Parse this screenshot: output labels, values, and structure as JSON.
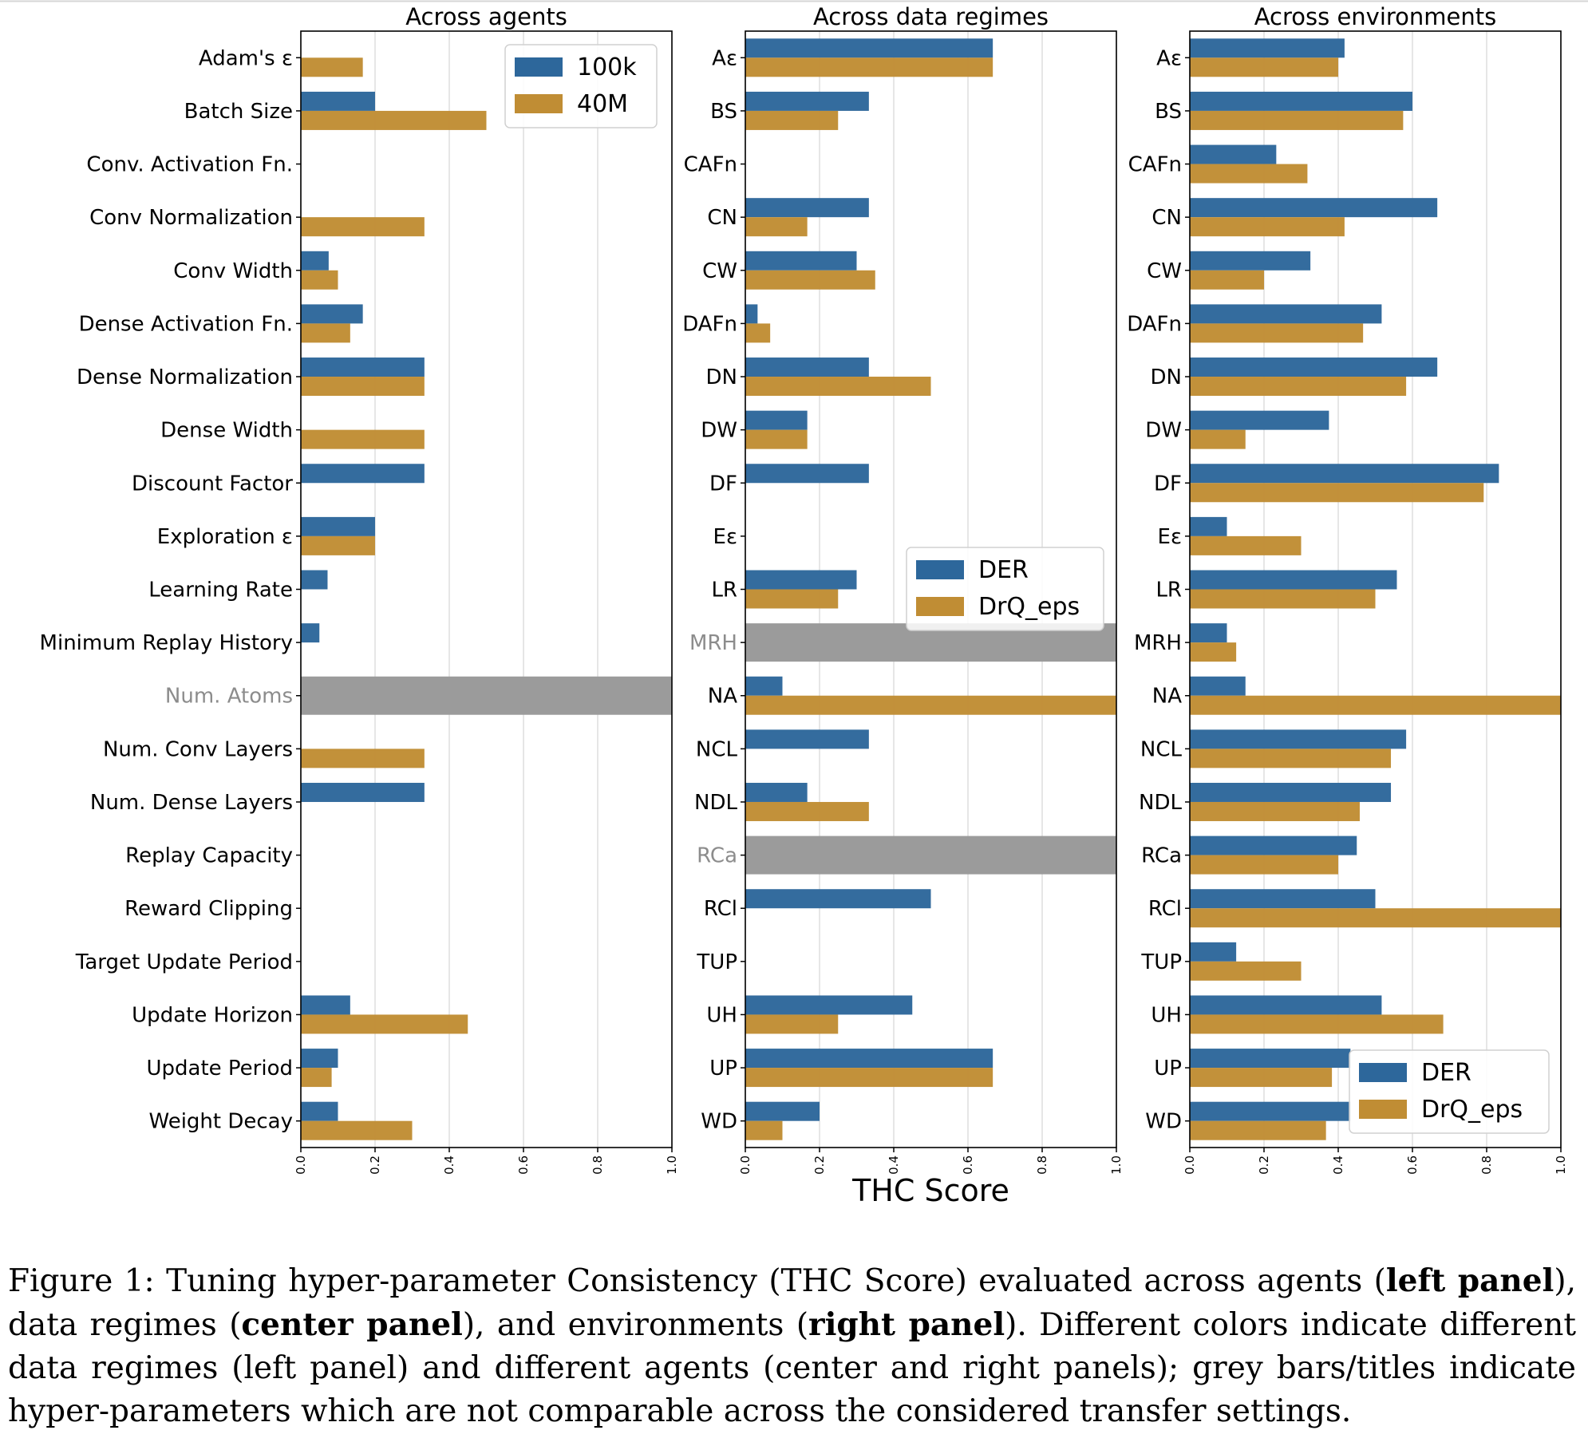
{
  "colors": {
    "series_a": "#2d679b",
    "series_b": "#c08d34",
    "grey_bar": "#9b9b9b",
    "grey_label": "#8c8c8c",
    "grid": "#dedede"
  },
  "chart_data": [
    {
      "type": "bar",
      "orientation": "horizontal",
      "title": "Across agents",
      "categories": [
        "Adam's ε",
        "Batch Size",
        "Conv. Activation Fn.",
        "Conv Normalization",
        "Conv Width",
        "Dense Activation Fn.",
        "Dense Normalization",
        "Dense Width",
        "Discount Factor",
        "Exploration ε",
        "Learning Rate",
        "Minimum Replay History",
        "Num. Atoms",
        "Num. Conv Layers",
        "Num. Dense Layers",
        "Replay Capacity",
        "Reward Clipping",
        "Target Update Period",
        "Update Horizon",
        "Update Period",
        "Weight Decay"
      ],
      "grey_categories": [
        "Num. Atoms"
      ],
      "series": [
        {
          "name": "100k",
          "values": [
            0,
            0.2,
            0,
            0,
            0.075,
            0.167,
            0.333,
            0,
            0.333,
            0.2,
            0.072,
            0.05,
            0,
            0,
            0.333,
            0,
            0,
            0,
            0.133,
            0.1,
            0.1
          ]
        },
        {
          "name": "40M",
          "values": [
            0.167,
            0.5,
            0,
            0.333,
            0.1,
            0.133,
            0.333,
            0.333,
            0,
            0.2,
            0,
            0,
            0,
            0.333,
            0,
            0,
            0,
            0,
            0.45,
            0.083,
            0.3
          ]
        }
      ],
      "xlim": [
        0,
        1
      ],
      "xticks": [
        "0.0",
        "0.2",
        "0.4",
        "0.6",
        "0.8",
        "1.0"
      ],
      "legend": "top-right",
      "grid": true
    },
    {
      "type": "bar",
      "orientation": "horizontal",
      "title": "Across data regimes",
      "categories": [
        "Aε",
        "BS",
        "CAFn",
        "CN",
        "CW",
        "DAFn",
        "DN",
        "DW",
        "DF",
        "Eε",
        "LR",
        "MRH",
        "NA",
        "NCL",
        "NDL",
        "RCa",
        "RCl",
        "TUP",
        "UH",
        "UP",
        "WD"
      ],
      "grey_categories": [
        "MRH",
        "RCa"
      ],
      "series": [
        {
          "name": "DER",
          "values": [
            0.667,
            0.333,
            0,
            0.333,
            0.3,
            0.033,
            0.333,
            0.167,
            0.333,
            0,
            0.3,
            0,
            0.1,
            0.333,
            0.167,
            0,
            0.5,
            0,
            0.45,
            0.667,
            0.2
          ]
        },
        {
          "name": "DrQ_eps",
          "values": [
            0.667,
            0.25,
            0,
            0.167,
            0.35,
            0.067,
            0.5,
            0.167,
            0,
            0,
            0.25,
            0,
            1.0,
            0,
            0.333,
            0,
            0,
            0,
            0.25,
            0.667,
            0.1
          ]
        }
      ],
      "xlim": [
        0,
        1
      ],
      "xticks": [
        "0.0",
        "0.2",
        "0.4",
        "0.6",
        "0.8",
        "1.0"
      ],
      "xlabel": "THC Score",
      "legend": "center-right",
      "grid": true
    },
    {
      "type": "bar",
      "orientation": "horizontal",
      "title": "Across environments",
      "categories": [
        "Aε",
        "BS",
        "CAFn",
        "CN",
        "CW",
        "DAFn",
        "DN",
        "DW",
        "DF",
        "Eε",
        "LR",
        "MRH",
        "NA",
        "NCL",
        "NDL",
        "RCa",
        "RCl",
        "TUP",
        "UH",
        "UP",
        "WD"
      ],
      "grey_categories": [],
      "series": [
        {
          "name": "DER",
          "values": [
            0.417,
            0.6,
            0.233,
            0.667,
            0.325,
            0.517,
            0.667,
            0.375,
            0.833,
            0.1,
            0.558,
            0.1,
            0.15,
            0.583,
            0.542,
            0.45,
            0.5,
            0.125,
            0.517,
            0.433,
            0.433
          ]
        },
        {
          "name": "DrQ_eps",
          "values": [
            0.4,
            0.575,
            0.317,
            0.417,
            0.2,
            0.467,
            0.583,
            0.15,
            0.792,
            0.3,
            0.5,
            0.125,
            1.0,
            0.542,
            0.458,
            0.4,
            1.0,
            0.3,
            0.683,
            0.383,
            0.367
          ]
        }
      ],
      "xlim": [
        0,
        1
      ],
      "xticks": [
        "0.0",
        "0.2",
        "0.4",
        "0.6",
        "0.8",
        "1.0"
      ],
      "legend": "bottom-right",
      "grid": true
    }
  ],
  "caption": {
    "p1": "Figure 1: Tuning hyper-parameter Consistency (THC Score) evaluated across agents (",
    "b1": "left panel",
    "p2": "), data regimes (",
    "b2": "center panel",
    "p3": "), and environments (",
    "b3": "right panel",
    "p4": "). Different colors indicate different data regimes (left panel) and different agents (center and right panels); grey bars/titles indicate hyper-parameters which are not comparable across the considered transfer settings."
  }
}
